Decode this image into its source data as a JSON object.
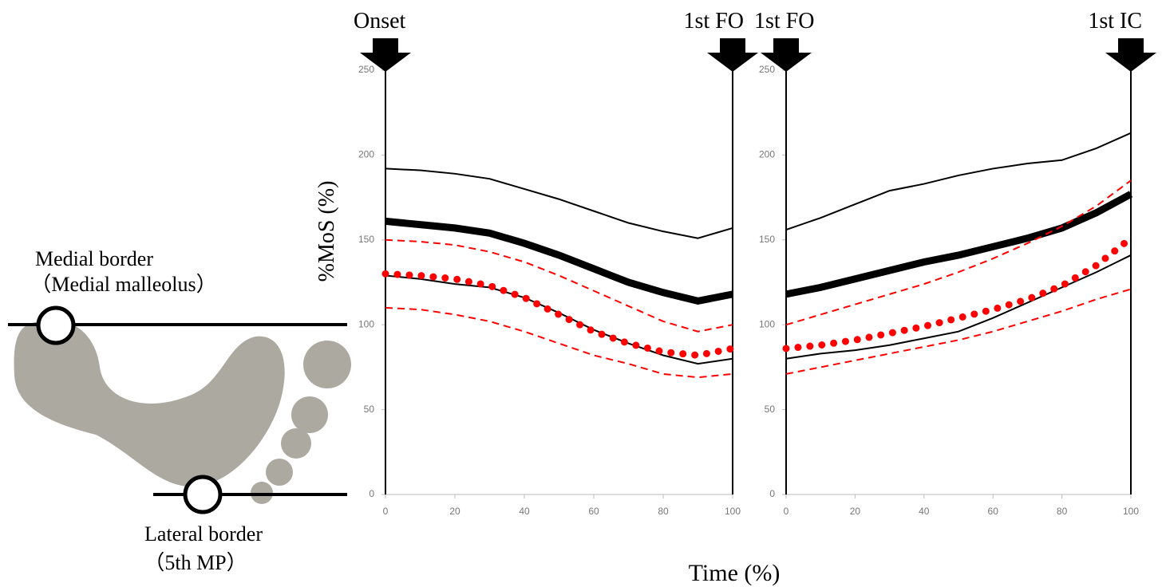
{
  "figure": {
    "ylabel": "%MoS (%)",
    "xlabel": "Time (%)"
  },
  "diagram": {
    "medial_label": "Medial border",
    "medial_sub": "（Medial malleolus）",
    "lateral_label": "Lateral border",
    "lateral_sub": "（5th MP）"
  },
  "chart_data": [
    {
      "type": "line",
      "x": [
        0,
        10,
        20,
        30,
        40,
        50,
        60,
        70,
        80,
        90,
        100
      ],
      "xlim": [
        0,
        100
      ],
      "xticks": [
        0,
        20,
        40,
        60,
        80,
        100
      ],
      "ylim": [
        0,
        250
      ],
      "yticks": [
        0,
        50,
        100,
        150,
        200,
        250
      ],
      "events": [
        {
          "x": 0,
          "label": "Onset"
        },
        {
          "x": 100,
          "label": "1st FO"
        }
      ],
      "series": [
        {
          "color": "#000000",
          "style": "thin",
          "values": [
            192,
            191,
            189,
            186,
            180,
            174,
            167,
            160,
            155,
            151,
            157
          ]
        },
        {
          "color": "#000000",
          "style": "thick",
          "values": [
            161,
            159,
            157,
            154,
            148,
            141,
            133,
            125,
            119,
            114,
            118
          ]
        },
        {
          "color": "#000000",
          "style": "thin",
          "values": [
            129,
            127,
            124,
            122,
            116,
            107,
            97,
            89,
            82,
            77,
            80
          ]
        },
        {
          "color": "#ff0000",
          "style": "dashed",
          "values": [
            150,
            149,
            147,
            143,
            137,
            129,
            120,
            111,
            102,
            96,
            100
          ]
        },
        {
          "color": "#ff0000",
          "style": "dotted",
          "values": [
            130,
            129,
            127,
            123,
            116,
            106,
            96,
            89,
            84,
            82,
            86
          ]
        },
        {
          "color": "#ff0000",
          "style": "dashed",
          "values": [
            110,
            109,
            106,
            102,
            96,
            89,
            82,
            77,
            71,
            69,
            71
          ]
        }
      ]
    },
    {
      "type": "line",
      "x": [
        0,
        10,
        20,
        30,
        40,
        50,
        60,
        70,
        80,
        90,
        100
      ],
      "xlim": [
        0,
        100
      ],
      "xticks": [
        0,
        20,
        40,
        60,
        80,
        100
      ],
      "ylim": [
        0,
        250
      ],
      "yticks": [
        0,
        50,
        100,
        150,
        200,
        250
      ],
      "events": [
        {
          "x": 0,
          "label": "1st FO"
        },
        {
          "x": 100,
          "label": "1st IC"
        }
      ],
      "series": [
        {
          "color": "#000000",
          "style": "thin",
          "values": [
            156,
            163,
            171,
            179,
            183,
            188,
            192,
            195,
            197,
            204,
            213
          ]
        },
        {
          "color": "#000000",
          "style": "thick",
          "values": [
            118,
            122,
            127,
            132,
            137,
            141,
            146,
            151,
            157,
            166,
            177
          ]
        },
        {
          "color": "#000000",
          "style": "thin",
          "values": [
            80,
            83,
            85,
            88,
            92,
            96,
            104,
            113,
            122,
            131,
            141
          ]
        },
        {
          "color": "#ff0000",
          "style": "dashed",
          "values": [
            100,
            106,
            112,
            118,
            124,
            131,
            139,
            148,
            158,
            170,
            185
          ]
        },
        {
          "color": "#ff0000",
          "style": "dotted",
          "values": [
            86,
            88,
            91,
            95,
            99,
            104,
            109,
            115,
            123,
            135,
            151
          ]
        },
        {
          "color": "#ff0000",
          "style": "dashed",
          "values": [
            71,
            75,
            79,
            83,
            87,
            91,
            96,
            102,
            108,
            115,
            121
          ]
        }
      ]
    }
  ]
}
